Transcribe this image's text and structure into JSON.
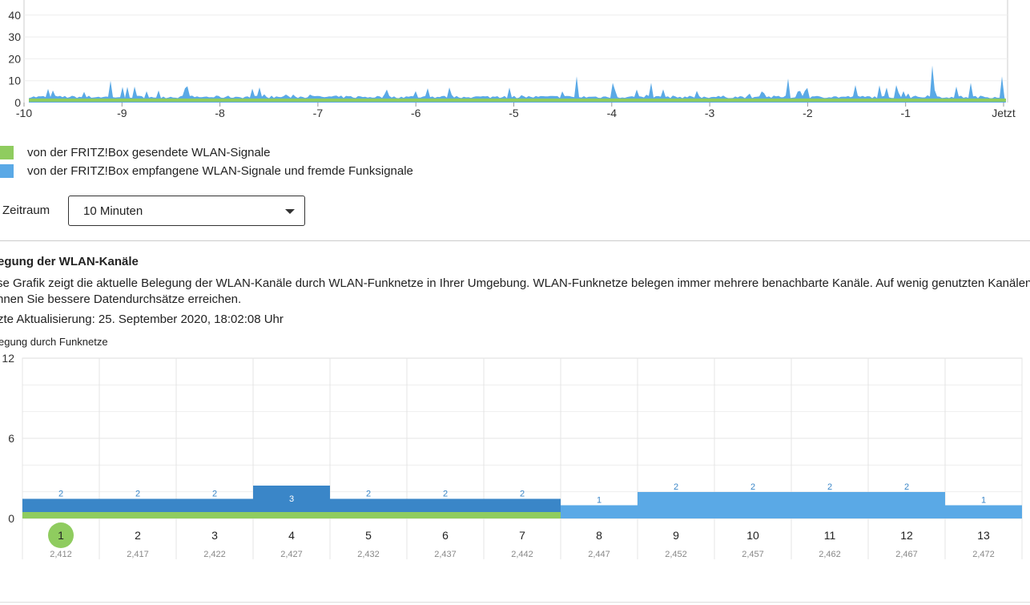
{
  "top_chart": {
    "y_ticks": [
      "0",
      "10",
      "20",
      "30",
      "40"
    ],
    "x_ticks": [
      "-10",
      "-9",
      "-8",
      "-7",
      "-6",
      "-5",
      "-4",
      "-3",
      "-2",
      "-1",
      "Jetzt"
    ],
    "colors": {
      "sent": "#8fcc5f",
      "received": "#5aa9e6"
    }
  },
  "legend": [
    {
      "label": "von der FRITZ!Box gesendete WLAN-Signale",
      "color": "#8fcc5f"
    },
    {
      "label": "von der FRITZ!Box empfangene WLAN-Signale und fremde Funksignale",
      "color": "#5aa9e6"
    }
  ],
  "zeitraum": {
    "label": "Zeitraum",
    "value": "10 Minuten"
  },
  "section": {
    "title": "egung der WLAN-Kanäle",
    "desc_line1": "se Grafik zeigt die aktuelle Belegung der WLAN-Kanäle durch WLAN-Funknetze in Ihrer Umgebung. WLAN-Funknetze belegen immer mehrere benachbarte Kanäle. Auf wenig genutzten Kanälen",
    "desc_line2": "nnen Sie bessere Datendurchsätze erreichen.",
    "last_update": "zte Aktualisierung: 25. September 2020, 18:02:08 Uhr",
    "chart_caption": "egung durch Funknetze"
  },
  "chart_data": {
    "type": "bar",
    "y_ticks": [
      "12",
      "6",
      "0"
    ],
    "ylim": [
      0,
      12
    ],
    "categories": [
      "1",
      "2",
      "3",
      "4",
      "5",
      "6",
      "7",
      "8",
      "9",
      "10",
      "11",
      "12",
      "13"
    ],
    "frequencies": [
      "2,412",
      "2,417",
      "2,422",
      "2,427",
      "2,432",
      "2,437",
      "2,442",
      "2,447",
      "2,452",
      "2,457",
      "2,462",
      "2,467",
      "2,472"
    ],
    "own_network": {
      "channels": [
        1,
        2,
        3,
        4,
        5,
        6,
        7
      ],
      "value": 1,
      "color": "#8fcc5f"
    },
    "foreign_networks": {
      "values": [
        2,
        2,
        2,
        3,
        2,
        2,
        2,
        1,
        2,
        2,
        2,
        2,
        1
      ],
      "color_dark": "#3a86c8",
      "color_light": "#5aa9e6"
    },
    "selected_channel": "1"
  }
}
